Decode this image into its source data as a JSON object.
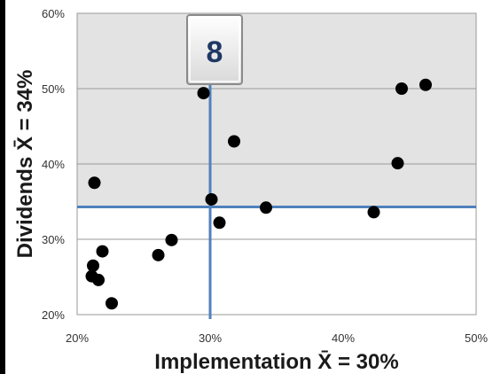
{
  "chart_data": {
    "type": "scatter",
    "xlabel": "Implementation  X̄ = 30%",
    "ylabel": "Dividends  X̄ = 34%",
    "xlim": [
      0.2,
      0.5
    ],
    "ylim": [
      0.2,
      0.6
    ],
    "x_ticks": [
      0.2,
      0.3,
      0.4,
      0.5
    ],
    "x_tick_labels": [
      "20%",
      "30%",
      "40%",
      "50%"
    ],
    "y_ticks": [
      0.2,
      0.3,
      0.4,
      0.5,
      0.6
    ],
    "y_tick_labels": [
      "20%",
      "30%",
      "40%",
      "50%",
      "60%"
    ],
    "mean_lines": {
      "x": 0.3,
      "y": 0.343
    },
    "badge": "8",
    "grid": "horizontal",
    "colors": {
      "mean_line": "#4f81bd",
      "upper_region": "#e3e3e3",
      "points": "#000000",
      "left_frame": "#000000"
    },
    "points": [
      {
        "x": 0.213,
        "y": 0.375
      },
      {
        "x": 0.211,
        "y": 0.251
      },
      {
        "x": 0.212,
        "y": 0.265
      },
      {
        "x": 0.216,
        "y": 0.246
      },
      {
        "x": 0.219,
        "y": 0.284
      },
      {
        "x": 0.226,
        "y": 0.215
      },
      {
        "x": 0.261,
        "y": 0.279
      },
      {
        "x": 0.271,
        "y": 0.299
      },
      {
        "x": 0.295,
        "y": 0.494
      },
      {
        "x": 0.301,
        "y": 0.353
      },
      {
        "x": 0.307,
        "y": 0.322
      },
      {
        "x": 0.318,
        "y": 0.43
      },
      {
        "x": 0.342,
        "y": 0.342
      },
      {
        "x": 0.423,
        "y": 0.336
      },
      {
        "x": 0.441,
        "y": 0.401
      },
      {
        "x": 0.444,
        "y": 0.5
      },
      {
        "x": 0.462,
        "y": 0.505
      }
    ]
  }
}
